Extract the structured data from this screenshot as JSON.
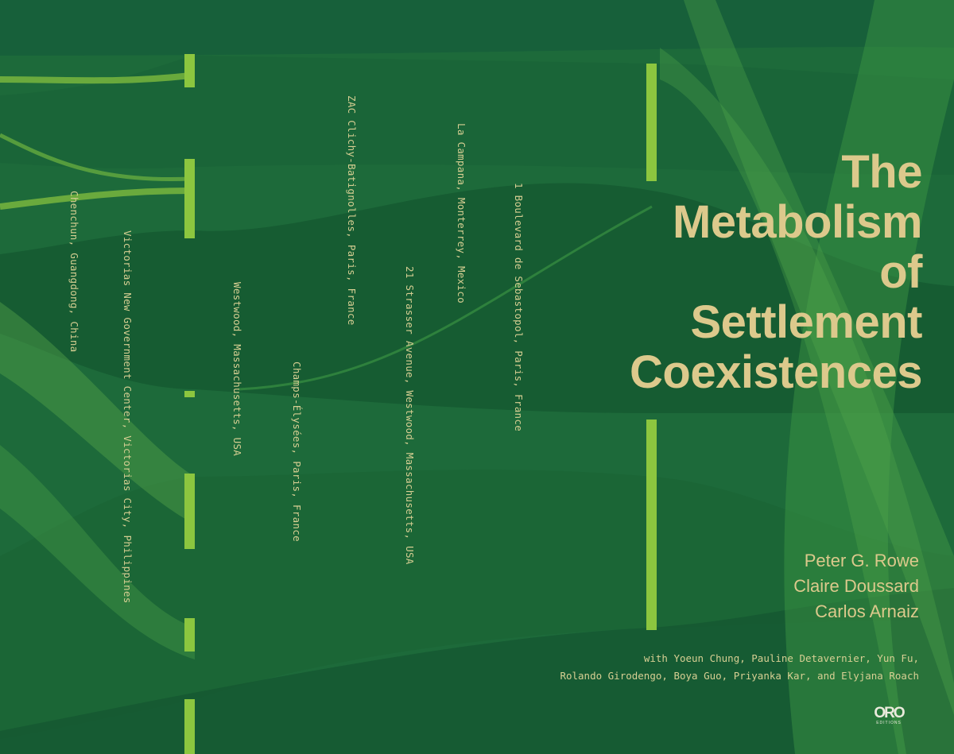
{
  "cover": {
    "title_lines": [
      "The",
      "Metabolism",
      "of",
      "Settlement",
      "Coexistences"
    ],
    "authors": [
      "Peter G. Rowe",
      "Claire Doussard",
      "Carlos Arnaiz"
    ],
    "contributors_lines": [
      "with Yoeun Chung, Pauline Detavernier, Yun Fu,",
      "Rolando Girodengo, Boya Guo,  Priyanka Kar, and Elyjana Roach"
    ],
    "publisher_logo": {
      "text": "ORO",
      "subtext": "EDITIONS"
    },
    "locations": [
      "Chenchun, Guangdong, China",
      "Victorias New Government Center, Victorias City, Philippines",
      "Westwood, Massachusetts, USA",
      "Champs-Élysées, Paris, France",
      "ZAC Clichy-Batignolles, Paris, France",
      "21 Strasser Avenue, Westwood, Massachusetts, USA",
      "La Campana, Monterrey, Mexico",
      "1 Boulevard de Sebastopol, Paris, France"
    ]
  },
  "colors": {
    "background": "#1d6a3a",
    "accent_bar": "#8cc63f",
    "title_text": "#dcc98c",
    "flow_light": "#4fa64a",
    "flow_dark": "#155a30"
  }
}
